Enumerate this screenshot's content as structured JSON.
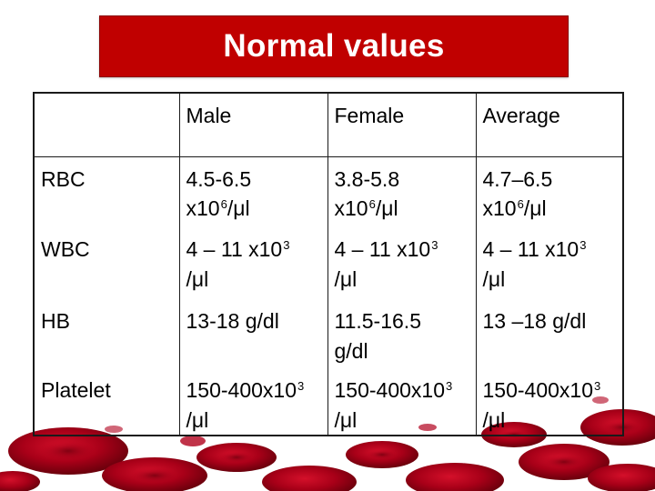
{
  "title": "Normal values",
  "table": {
    "columns": [
      "Male",
      "Female",
      "Average"
    ],
    "rows": [
      {
        "label": "RBC",
        "male": {
          "value": "4.5-6.5",
          "base": "x10",
          "exp": "6",
          "unit": "/μl"
        },
        "female": {
          "value": "3.8-5.8",
          "base": "x10",
          "exp": "6",
          "unit": "/μl"
        },
        "average": {
          "value": "4.7–6.5",
          "base": "x10",
          "exp": "6",
          "unit": "/μl"
        }
      },
      {
        "label": "WBC",
        "male": {
          "value": "4 – 11 x10",
          "exp": "3",
          "unit": "/μl"
        },
        "female": {
          "value": "4 – 11 x10",
          "exp": "3",
          "unit": "/μl"
        },
        "average": {
          "value": "4 – 11 x10",
          "exp": "3",
          "unit": "/μl"
        }
      },
      {
        "label": "HB",
        "male": {
          "value": "13-18 g/dl"
        },
        "female": {
          "value": "11.5-16.5",
          "unit": "g/dl"
        },
        "average": {
          "value": "13 –18 g/dl"
        }
      },
      {
        "label": "Platelet",
        "male": {
          "value": "150-400x10",
          "exp": "3",
          "unit": "/μl"
        },
        "female": {
          "value": "150-400x10",
          "exp": "3",
          "unit": "/μl"
        },
        "average": {
          "value": "150-400x10",
          "exp": "3",
          "unit": "/μl"
        }
      }
    ]
  },
  "colors": {
    "title_bg": "#c00000",
    "title_text": "#ffffff",
    "cell_red": "#b3001b"
  }
}
